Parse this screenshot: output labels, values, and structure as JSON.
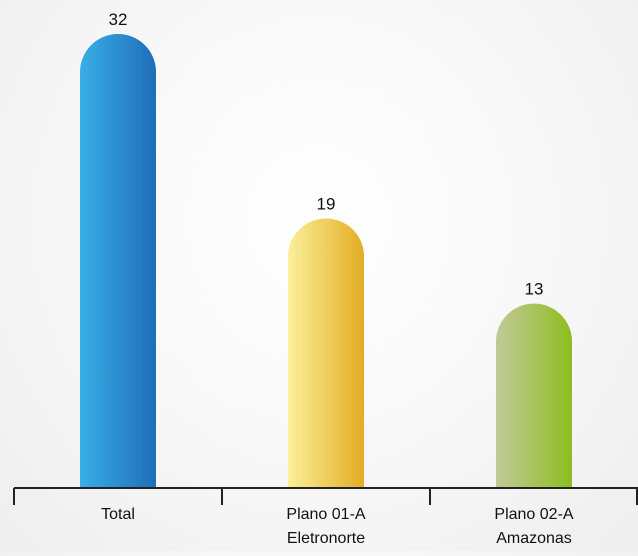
{
  "chart_data": {
    "type": "bar",
    "categories": [
      [
        "Total"
      ],
      [
        "Plano 01-A",
        "Eletronorte"
      ],
      [
        "Plano 02-A",
        "Amazonas"
      ]
    ],
    "values": [
      32,
      19,
      13
    ],
    "value_labels": [
      "32",
      "19",
      "13"
    ],
    "ylim": [
      0,
      32
    ],
    "grid": false,
    "legend": "none",
    "colors": [
      {
        "from": "#3aaee6",
        "to": "#1e6eb8"
      },
      {
        "from": "#fbf09a",
        "to": "#e2ad22"
      },
      {
        "from": "#c2c99a",
        "to": "#8cbe1e"
      }
    ],
    "axis_color": "#222222",
    "label_color": "#111111"
  }
}
